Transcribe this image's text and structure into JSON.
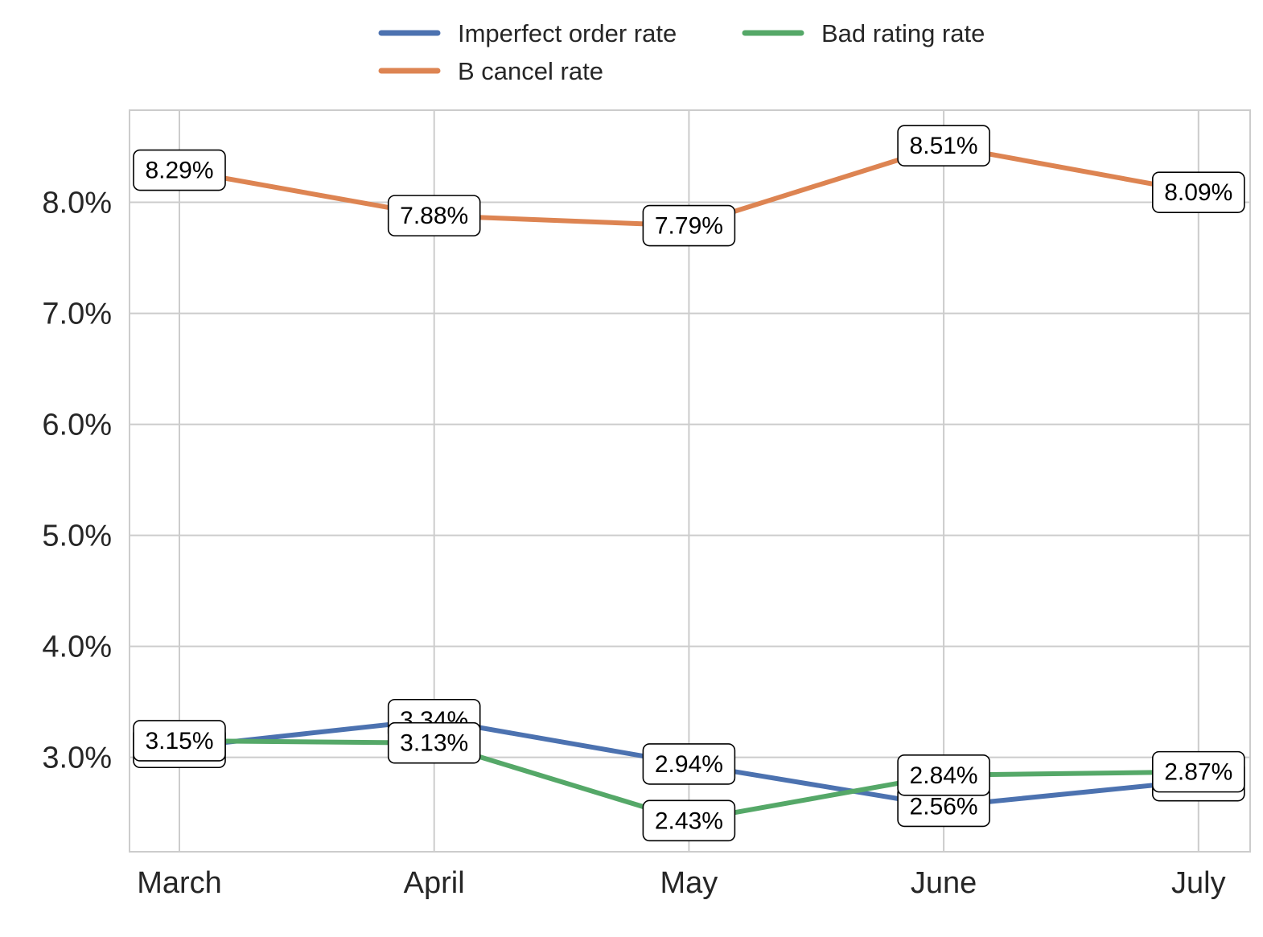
{
  "chart_data": {
    "type": "line",
    "categories": [
      "March",
      "April",
      "May",
      "June",
      "July"
    ],
    "y_unit": "%",
    "ylim": [
      2.15,
      8.83
    ],
    "yticks": [
      3.0,
      4.0,
      5.0,
      6.0,
      7.0,
      8.0
    ],
    "ytick_labels": [
      "3.0%",
      "4.0%",
      "5.0%",
      "6.0%",
      "7.0%",
      "8.0%"
    ],
    "grid": true,
    "legend_position": "top-center",
    "series": [
      {
        "name": "Imperfect order rate",
        "color": "#4c72b0",
        "values": [
          3.09,
          3.34,
          2.94,
          2.56,
          2.79
        ],
        "labels": [
          "",
          "3.34%",
          "2.94%",
          "2.56%",
          ""
        ]
      },
      {
        "name": "B cancel rate",
        "color": "#dd8452",
        "values": [
          8.29,
          7.88,
          7.79,
          8.51,
          8.09
        ],
        "labels": [
          "8.29%",
          "7.88%",
          "7.79%",
          "8.51%",
          "8.09%"
        ]
      },
      {
        "name": "Bad rating rate",
        "color": "#55a868",
        "values": [
          3.15,
          3.13,
          2.43,
          2.84,
          2.87
        ],
        "labels": [
          "3.15%",
          "3.13%",
          "2.43%",
          "2.84%",
          "2.87%"
        ]
      }
    ]
  }
}
